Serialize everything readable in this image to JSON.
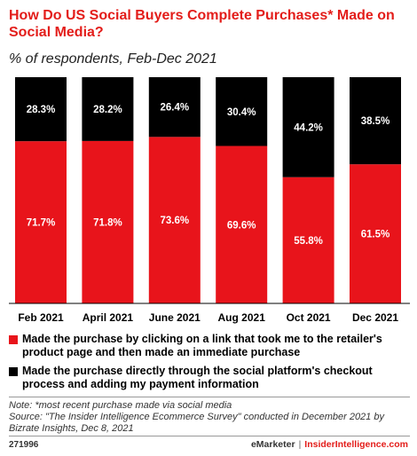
{
  "title": "How Do US Social Buyers Complete Purchases* Made on Social Media?",
  "subtitle": "% of respondents, Feb-Dec 2021",
  "colors": {
    "accent": "#e31d1a",
    "series1": "#e8141b",
    "series2": "#000000"
  },
  "legend": [
    "Made the purchase by clicking on a link that took me to the retailer's product page and then made an immediate purchase",
    "Made the purchase directly through the social platform's checkout process and adding my payment information"
  ],
  "note": "Note: *most recent purchase made via social media",
  "source": "Source: \"The Insider Intelligence Ecommerce Survey\" conducted in December 2021 by Bizrate Insights, Dec 8, 2021",
  "footer": {
    "id": "271996",
    "brand1": "eMarketer",
    "separator": "|",
    "brand2": "InsiderIntelligence.com"
  },
  "chart_data": {
    "type": "bar",
    "stacked": true,
    "percent_stacked": true,
    "categories": [
      "Feb 2021",
      "April 2021",
      "June 2021",
      "Aug 2021",
      "Oct 2021",
      "Dec 2021"
    ],
    "series": [
      {
        "values": [
          71.7,
          71.8,
          73.6,
          69.6,
          55.8,
          61.5
        ],
        "labels": [
          "71.7%",
          "71.8%",
          "73.6%",
          "69.6%",
          "55.8%",
          "61.5%"
        ],
        "color": "#e8141b"
      },
      {
        "values": [
          28.3,
          28.2,
          26.4,
          30.4,
          44.2,
          38.5
        ],
        "labels": [
          "28.3%",
          "28.2%",
          "26.4%",
          "30.4%",
          "44.2%",
          "38.5%"
        ],
        "color": "#000000"
      }
    ],
    "ylim": [
      0,
      100
    ],
    "grid": false,
    "legend_position": "bottom"
  }
}
